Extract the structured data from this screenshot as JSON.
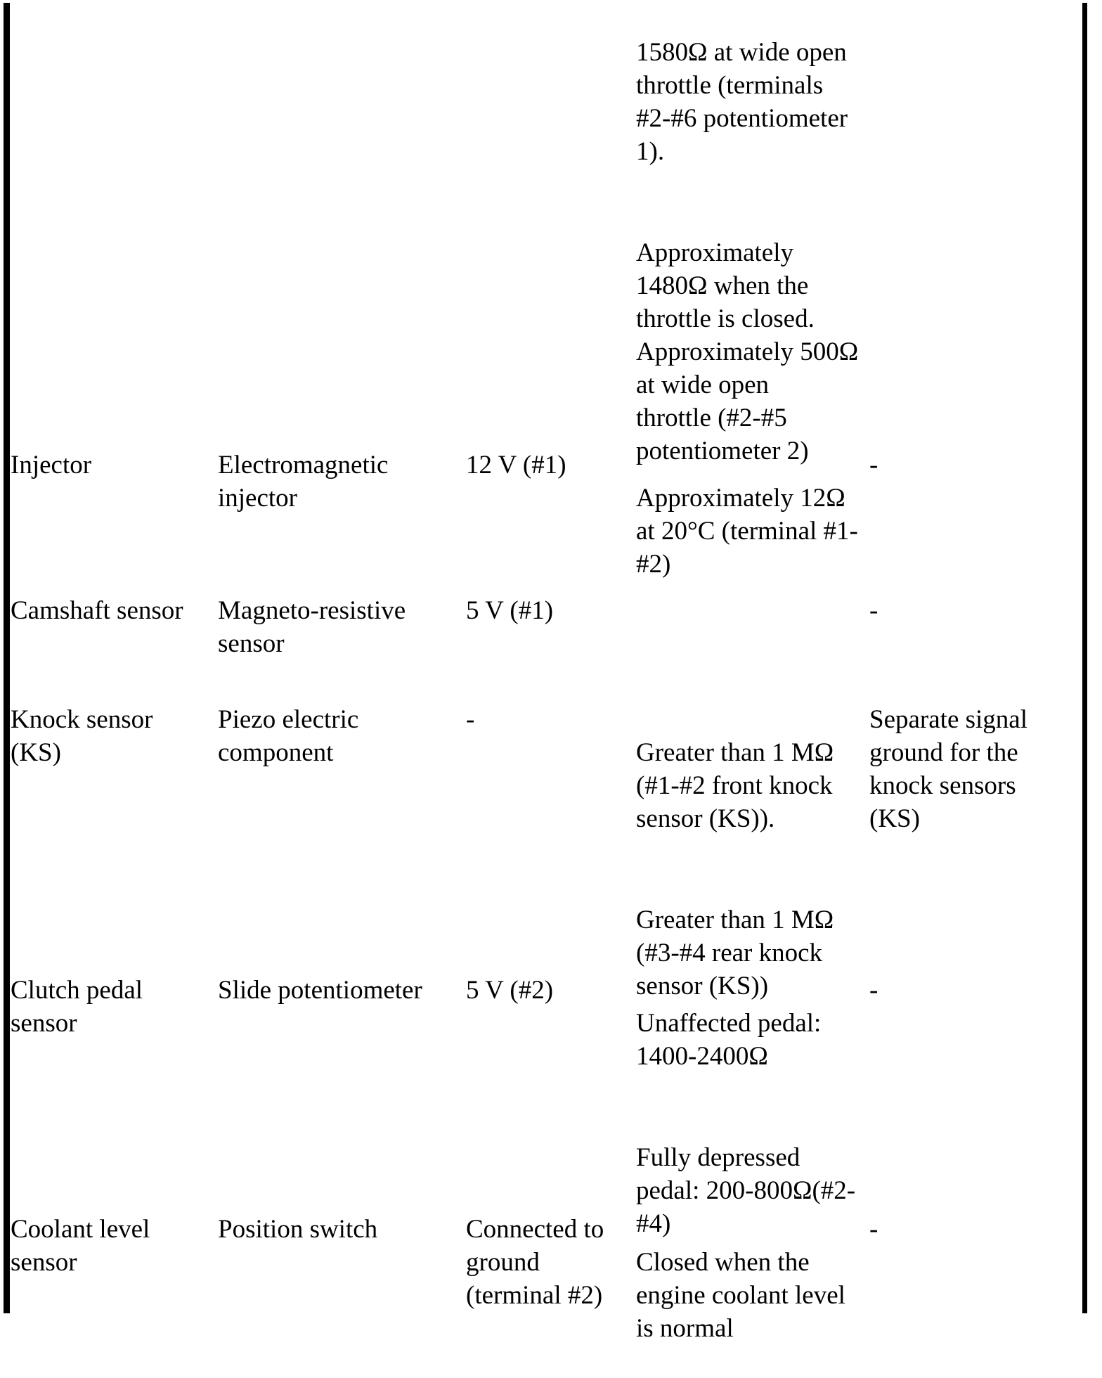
{
  "colors": {
    "ink": "#000000",
    "paper": "#ffffff"
  },
  "table": {
    "continuation_row": {
      "criteria_paragraphs": [
        "1580Ω  at wide open\nthrottle (terminals\n#2-#6 potentiometer\n1).",
        "Approximately\n1480Ω  when the\nthrottle is closed.\nApproximately 500Ω\nat wide open\nthrottle (#2-#5\npotentiometer 2)"
      ]
    },
    "rows": [
      {
        "component": "Injector",
        "type": "Electromagnetic\ninjector",
        "voltage": "12 V (#1)",
        "criteria_paragraphs": [
          "Approximately 12Ω\nat 20°C (terminal #1-\n#2)"
        ],
        "notes": "-"
      },
      {
        "component": "Camshaft sensor",
        "type": "Magneto-resistive\nsensor",
        "voltage": "5 V (#1)",
        "criteria_paragraphs": [],
        "notes": "-"
      },
      {
        "component": "Knock sensor\n(KS)",
        "type": "Piezo electric\ncomponent",
        "voltage": "-",
        "criteria_paragraphs": [
          "Greater than 1 MΩ\n(#1-#2 front knock\nsensor (KS)).",
          "Greater than 1 MΩ\n(#3-#4 rear knock\nsensor (KS))"
        ],
        "notes": "Separate signal\nground for the\nknock sensors\n(KS)"
      },
      {
        "component": "Clutch pedal\nsensor",
        "type": "Slide potentiometer",
        "voltage": "5 V (#2)",
        "criteria_paragraphs": [
          "Unaffected pedal:\n1400-2400Ω",
          "Fully depressed\npedal: 200-800Ω(#2-\n#4)"
        ],
        "notes": "-"
      },
      {
        "component": "Coolant level\nsensor",
        "type": "Position switch",
        "voltage": "Connected to\nground\n(terminal #2)",
        "criteria_paragraphs": [
          "Closed when the\nengine coolant level\nis normal"
        ],
        "notes": "-"
      }
    ]
  }
}
